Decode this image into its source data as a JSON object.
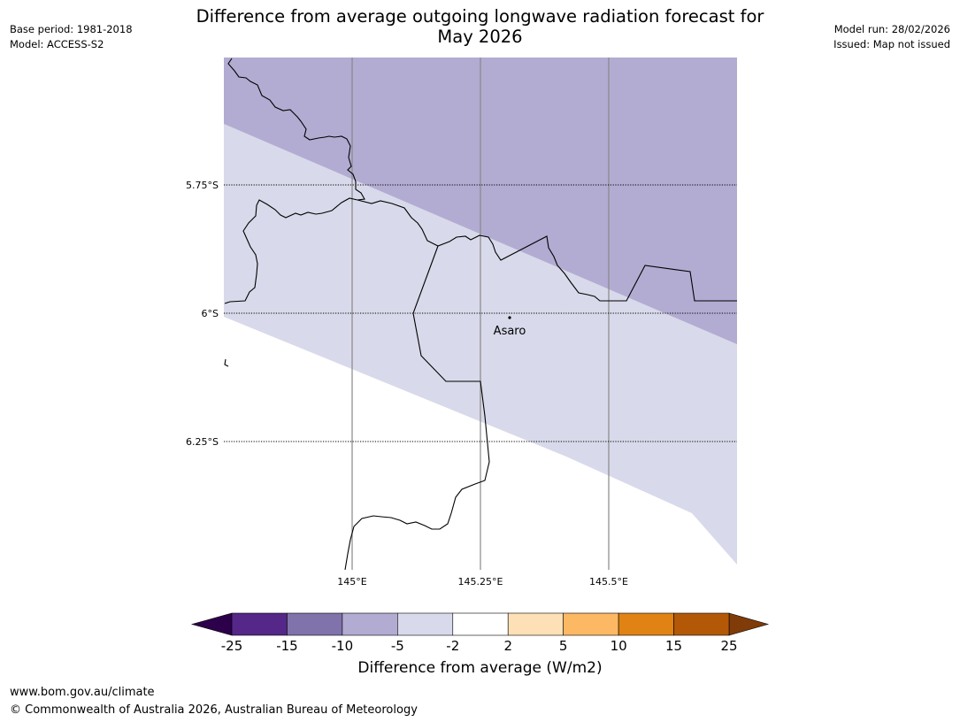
{
  "header": {
    "title_line1": "Difference from average outgoing longwave radiation forecast for",
    "title_line2": "May 2026",
    "base_period": "Base period: 1981-2018",
    "model": "Model: ACCESS-S2",
    "model_run": "Model run: 28/02/2026",
    "issued": "Issued: Map not issued"
  },
  "map": {
    "lat_labels": [
      "5.75°S",
      "6°S",
      "6.25°S"
    ],
    "lon_labels": [
      "145°E",
      "145.25°E",
      "145.5°E"
    ],
    "place": {
      "name": "Asaro"
    },
    "colors": {
      "band_minus10_minus5": "#b2acd2",
      "band_minus5_minus2": "#d8d9ea",
      "band_neutral": "#ffffff",
      "coast": "#000000",
      "gridline": "#888888"
    }
  },
  "colorbar": {
    "label": "Difference from average (W/m2)",
    "ticks": [
      "-25",
      "-15",
      "-10",
      "-5",
      "-2",
      "2",
      "5",
      "10",
      "15",
      "25"
    ],
    "low_extend_color": "#2d004b",
    "high_extend_color": "#7f3b08",
    "colors": [
      "#542788",
      "#8073ac",
      "#b2abd2",
      "#d8daeb",
      "#ffffff",
      "#fee0b6",
      "#fdb863",
      "#e08214",
      "#b35806"
    ]
  },
  "footer": {
    "url": "www.bom.gov.au/climate",
    "copyright": "© Commonwealth of Australia 2026, Australian Bureau of Meteorology"
  }
}
